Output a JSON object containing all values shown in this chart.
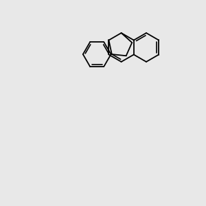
{
  "bg": "#e8e8e8",
  "bk": "#000000",
  "bl": "#0000cc",
  "rd": "#cc0000",
  "yl": "#bbbb00",
  "figsize": [
    3.0,
    3.0
  ],
  "dpi": 100
}
